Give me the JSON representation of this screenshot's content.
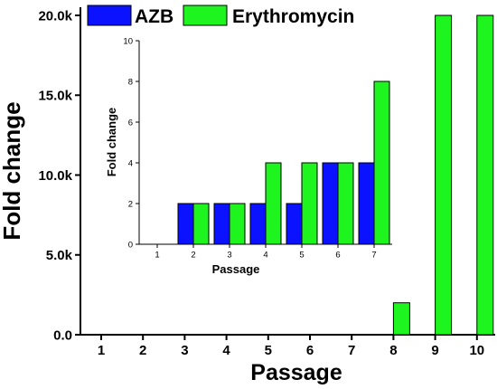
{
  "chart_data": [
    {
      "type": "bar",
      "ylabel": "Fold change",
      "xlabel": "Passage",
      "categories": [
        "1",
        "2",
        "3",
        "4",
        "5",
        "6",
        "7",
        "8",
        "9",
        "10"
      ],
      "yticks": [
        "0.0",
        "5.0k",
        "10.0k",
        "15.0k",
        "20.0k"
      ],
      "ylim": [
        0,
        20000
      ],
      "series": [
        {
          "name": "AZB",
          "color": "#0a12ff",
          "values": [
            0,
            0,
            0,
            0,
            0,
            0,
            0,
            0,
            0,
            0
          ]
        },
        {
          "name": "Erythromycin",
          "color": "#1ef51e",
          "values": [
            0,
            0,
            0,
            0,
            0,
            0,
            0,
            2000,
            20000,
            20000
          ]
        }
      ],
      "legend": "top-left"
    },
    {
      "type": "bar",
      "ylabel": "Fold change",
      "xlabel": "Passage",
      "categories": [
        "1",
        "2",
        "3",
        "4",
        "5",
        "6",
        "7"
      ],
      "yticks": [
        "0",
        "2",
        "4",
        "6",
        "8",
        "10"
      ],
      "ylim": [
        0,
        10
      ],
      "series": [
        {
          "name": "AZB",
          "color": "#0a12ff",
          "values": [
            0,
            2,
            2,
            2,
            2,
            4,
            4
          ]
        },
        {
          "name": "Erythromycin",
          "color": "#1ef51e",
          "values": [
            0,
            2,
            2,
            4,
            4,
            4,
            8
          ]
        }
      ]
    }
  ]
}
